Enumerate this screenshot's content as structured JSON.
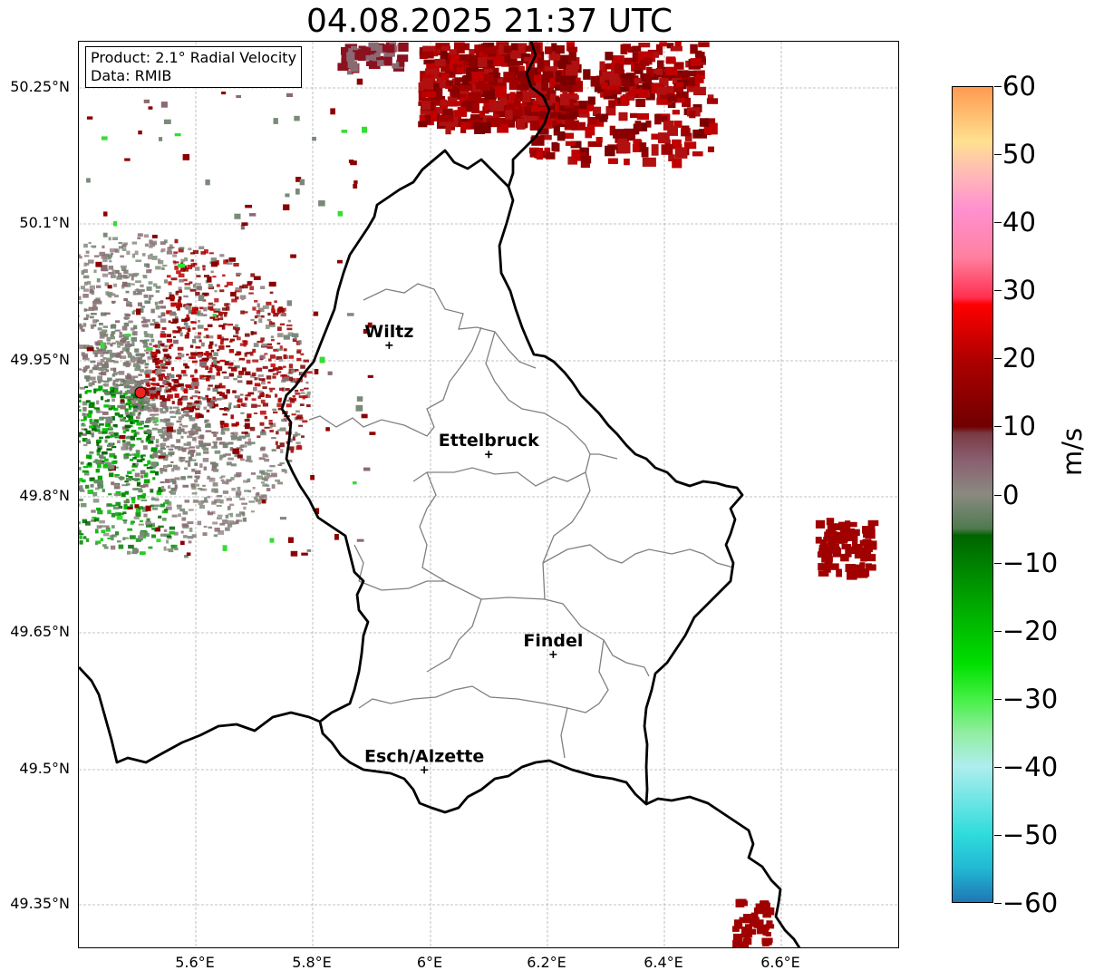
{
  "title": "04.08.2025 21:37 UTC",
  "info": {
    "product": "Product: 2.1° Radial Velocity",
    "source": "Data: RMIB"
  },
  "lat_labels": [
    "50.25°N",
    "50.1°N",
    "49.95°N",
    "49.8°N",
    "49.65°N",
    "49.5°N",
    "49.35°N"
  ],
  "lon_labels": [
    "5.6°E",
    "5.8°E",
    "6°E",
    "6.2°E",
    "6.4°E",
    "6.6°E"
  ],
  "cities": [
    {
      "name": "Wiltz",
      "lon": 5.93,
      "lat": 49.967
    },
    {
      "name": "Ettelbruck",
      "lon": 6.1,
      "lat": 49.847
    },
    {
      "name": "Findel",
      "lon": 6.21,
      "lat": 49.627
    },
    {
      "name": "Esch/Alzette",
      "lon": 5.99,
      "lat": 49.5
    }
  ],
  "radar_site": {
    "lon": 5.505,
    "lat": 49.915
  },
  "colorbar": {
    "unit": "m/s",
    "min": -60,
    "max": 60,
    "tick_labels": [
      "60",
      "50",
      "40",
      "30",
      "20",
      "10",
      "0",
      "−10",
      "−20",
      "−30",
      "−40",
      "−50",
      "−60"
    ],
    "stops": [
      {
        "v": -60,
        "color": "#1f77b4"
      },
      {
        "v": -55,
        "color": "#22b8d4"
      },
      {
        "v": -50,
        "color": "#2fdcdc"
      },
      {
        "v": -40,
        "color": "#aeeeee"
      },
      {
        "v": -35,
        "color": "#90eea0"
      },
      {
        "v": -30,
        "color": "#44f044"
      },
      {
        "v": -25,
        "color": "#00e000"
      },
      {
        "v": -15,
        "color": "#00a000"
      },
      {
        "v": -6,
        "color": "#006400"
      },
      {
        "v": -5,
        "color": "#4f7a4f"
      },
      {
        "v": 0,
        "color": "#8a8a80"
      },
      {
        "v": 5,
        "color": "#8a6070"
      },
      {
        "v": 9,
        "color": "#7a3a45"
      },
      {
        "v": 10,
        "color": "#700000"
      },
      {
        "v": 20,
        "color": "#b00000"
      },
      {
        "v": 28,
        "color": "#ff0000"
      },
      {
        "v": 29,
        "color": "#ff3050"
      },
      {
        "v": 35,
        "color": "#ff80a0"
      },
      {
        "v": 42,
        "color": "#ff90d0"
      },
      {
        "v": 47,
        "color": "#ffb8b8"
      },
      {
        "v": 52,
        "color": "#ffe090"
      },
      {
        "v": 60,
        "color": "#ff9a50"
      }
    ]
  },
  "colors": {
    "border": "#000000",
    "canton": "#808080",
    "grid": "#b0b0b0",
    "outbound": "#a00000",
    "inbound": "#008000",
    "neutral": "#8a7a7a",
    "site": "#ee2222"
  }
}
